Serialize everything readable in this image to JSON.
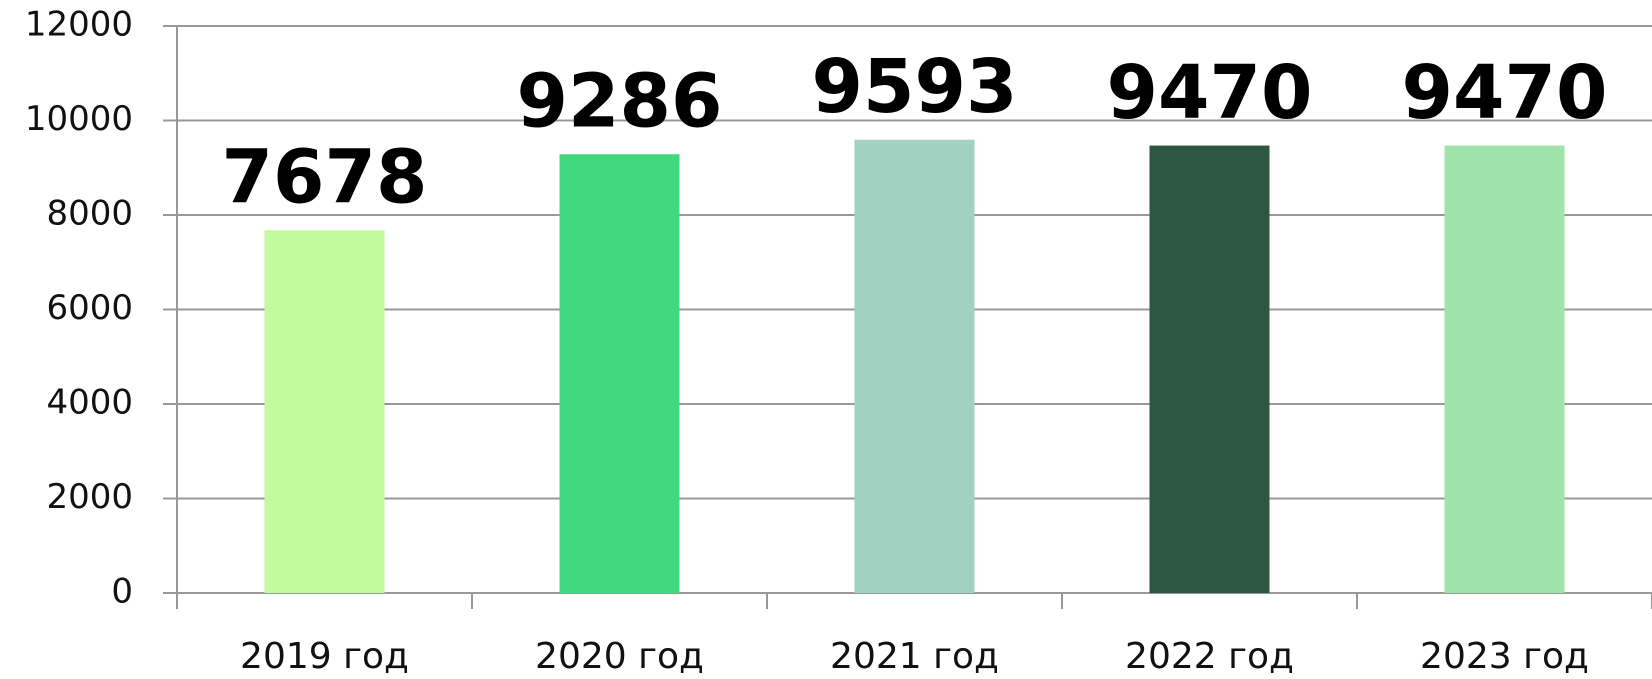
{
  "chart_data": {
    "type": "bar",
    "categories": [
      "2019 год",
      "2020 год",
      "2021 год",
      "2022 год",
      "2023 год"
    ],
    "values": [
      7678,
      9286,
      9593,
      9470,
      9470
    ],
    "colors": [
      "#c2fa9e",
      "#42d87e",
      "#a3d1c1",
      "#2e5742",
      "#9de3aa"
    ],
    "ylim": [
      0,
      12000
    ],
    "yticks": [
      0,
      2000,
      4000,
      6000,
      8000,
      10000,
      12000
    ],
    "grid": true
  }
}
